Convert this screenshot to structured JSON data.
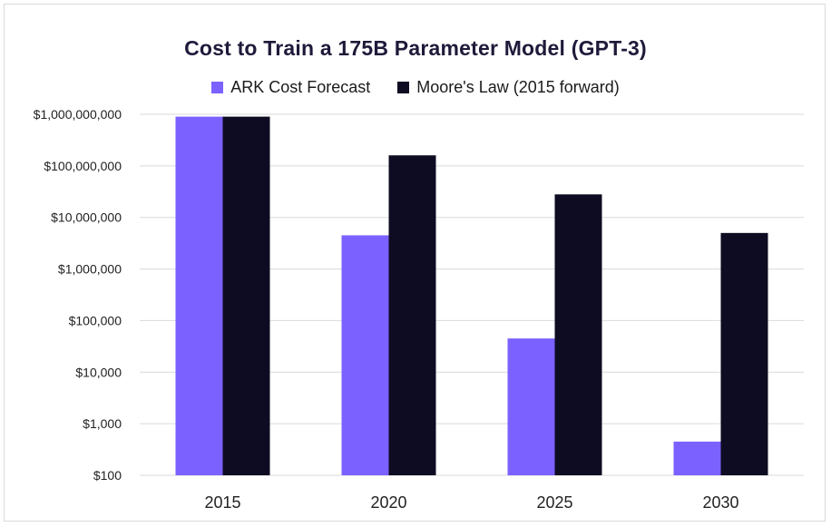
{
  "chart_data": {
    "type": "bar",
    "title": "Cost to Train a 175B Parameter Model (GPT-3)",
    "categories": [
      "2015",
      "2020",
      "2025",
      "2030"
    ],
    "series": [
      {
        "name": "ARK Cost Forecast",
        "color": "#7B61FF",
        "values": [
          900000000,
          4500000,
          45000,
          450
        ]
      },
      {
        "name": "Moore's Law (2015 forward)",
        "color": "#0D0C22",
        "values": [
          900000000,
          160000000,
          28000000,
          5000000
        ]
      }
    ],
    "yscale": "log",
    "ylim": [
      100,
      1000000000
    ],
    "yticks": [
      {
        "value": 100,
        "label": "$100"
      },
      {
        "value": 1000,
        "label": "$1,000"
      },
      {
        "value": 10000,
        "label": "$10,000"
      },
      {
        "value": 100000,
        "label": "$100,000"
      },
      {
        "value": 1000000,
        "label": "$1,000,000"
      },
      {
        "value": 10000000,
        "label": "$10,000,000"
      },
      {
        "value": 100000000,
        "label": "$100,000,000"
      },
      {
        "value": 1000000000,
        "label": "$1,000,000,000"
      }
    ],
    "grid": true,
    "legend_position": "top-center",
    "xlabel": "",
    "ylabel": ""
  }
}
